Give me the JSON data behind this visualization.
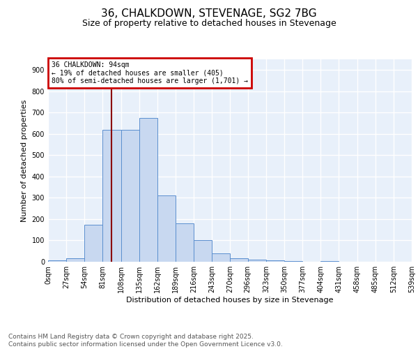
{
  "title": "36, CHALKDOWN, STEVENAGE, SG2 7BG",
  "subtitle": "Size of property relative to detached houses in Stevenage",
  "xlabel": "Distribution of detached houses by size in Stevenage",
  "ylabel": "Number of detached properties",
  "bar_color": "#c8d8f0",
  "bar_edge_color": "#5b8fcf",
  "background_color": "#e8f0fa",
  "grid_color": "#ffffff",
  "bins": [
    0,
    27,
    54,
    81,
    108,
    135,
    162,
    189,
    216,
    243,
    270,
    296,
    323,
    350,
    377,
    404,
    431,
    458,
    485,
    512,
    539
  ],
  "bar_heights": [
    5,
    15,
    175,
    620,
    620,
    675,
    310,
    180,
    100,
    40,
    15,
    10,
    5,
    2,
    0,
    3,
    0,
    0,
    0,
    0
  ],
  "property_size": 94,
  "vline_color": "#8b0000",
  "annotation_text": "36 CHALKDOWN: 94sqm\n← 19% of detached houses are smaller (405)\n80% of semi-detached houses are larger (1,701) →",
  "annotation_box_color": "#cc0000",
  "annotation_fill": "#ffffff",
  "ylim": [
    0,
    950
  ],
  "yticks": [
    0,
    100,
    200,
    300,
    400,
    500,
    600,
    700,
    800,
    900
  ],
  "footnote": "Contains HM Land Registry data © Crown copyright and database right 2025.\nContains public sector information licensed under the Open Government Licence v3.0.",
  "title_fontsize": 11,
  "subtitle_fontsize": 9,
  "tick_fontsize": 7,
  "label_fontsize": 8,
  "footnote_fontsize": 6.5
}
